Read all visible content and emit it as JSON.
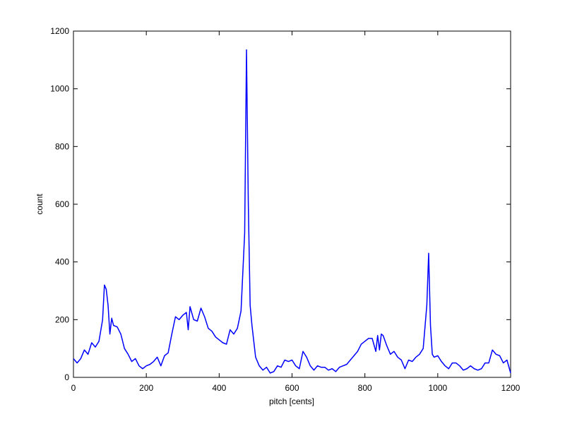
{
  "chart_data": {
    "type": "line",
    "xlabel": "pitch [cents]",
    "ylabel": "count",
    "x": [
      0,
      10,
      20,
      30,
      40,
      50,
      60,
      70,
      80,
      85,
      90,
      95,
      100,
      105,
      110,
      120,
      130,
      140,
      150,
      160,
      170,
      180,
      190,
      200,
      210,
      220,
      230,
      240,
      250,
      260,
      270,
      280,
      290,
      300,
      310,
      315,
      320,
      330,
      340,
      350,
      360,
      370,
      380,
      390,
      400,
      410,
      420,
      430,
      440,
      450,
      460,
      470,
      475,
      480,
      485,
      490,
      500,
      510,
      520,
      530,
      540,
      550,
      560,
      570,
      580,
      590,
      600,
      610,
      620,
      630,
      640,
      650,
      660,
      670,
      680,
      690,
      700,
      710,
      720,
      730,
      740,
      750,
      760,
      770,
      780,
      790,
      800,
      810,
      820,
      830,
      835,
      840,
      845,
      850,
      860,
      870,
      880,
      890,
      900,
      910,
      920,
      930,
      940,
      950,
      960,
      970,
      975,
      980,
      985,
      990,
      1000,
      1010,
      1020,
      1030,
      1040,
      1050,
      1060,
      1070,
      1080,
      1090,
      1100,
      1110,
      1120,
      1130,
      1140,
      1150,
      1160,
      1170,
      1180,
      1190,
      1200
    ],
    "series": [
      {
        "name": "count",
        "color": "#0000ff",
        "values": [
          65,
          50,
          65,
          95,
          80,
          120,
          105,
          125,
          200,
          320,
          305,
          250,
          150,
          205,
          180,
          175,
          150,
          100,
          80,
          55,
          65,
          40,
          30,
          40,
          45,
          55,
          70,
          40,
          75,
          85,
          150,
          210,
          200,
          215,
          225,
          165,
          245,
          200,
          195,
          240,
          210,
          170,
          160,
          140,
          130,
          120,
          115,
          165,
          150,
          170,
          230,
          500,
          1135,
          600,
          250,
          180,
          70,
          40,
          25,
          35,
          15,
          20,
          40,
          35,
          60,
          55,
          60,
          40,
          30,
          90,
          70,
          40,
          25,
          40,
          35,
          35,
          25,
          30,
          20,
          35,
          40,
          45,
          60,
          75,
          90,
          115,
          125,
          135,
          135,
          90,
          145,
          95,
          150,
          145,
          110,
          80,
          90,
          70,
          60,
          30,
          60,
          55,
          70,
          80,
          100,
          250,
          430,
          180,
          80,
          70,
          75,
          55,
          40,
          30,
          50,
          50,
          40,
          25,
          30,
          40,
          30,
          25,
          30,
          50,
          50,
          95,
          80,
          75,
          50,
          60,
          15
        ]
      }
    ],
    "xlim": [
      0,
      1200
    ],
    "ylim": [
      0,
      1200
    ],
    "xticks": [
      0,
      200,
      400,
      600,
      800,
      1000,
      1200
    ],
    "yticks": [
      0,
      200,
      400,
      600,
      800,
      1000,
      1200
    ]
  }
}
